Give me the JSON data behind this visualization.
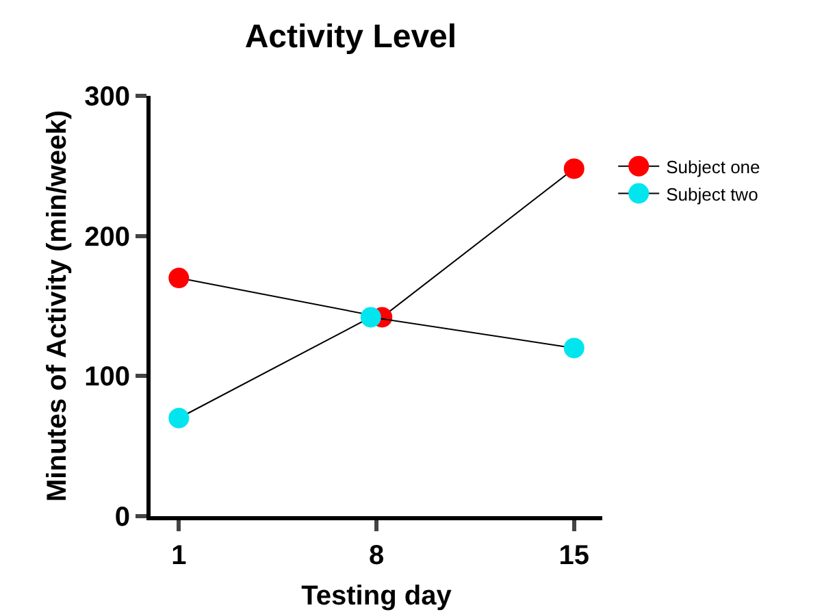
{
  "chart_data": {
    "type": "line",
    "title": "Activity Level",
    "xlabel": "Testing day",
    "ylabel": "Minutes of Activity (min/week)",
    "series": [
      {
        "name": "Subject one",
        "color": "#ff0000",
        "x": [
          1,
          8.2,
          15
        ],
        "values": [
          170,
          142,
          248
        ]
      },
      {
        "name": "Subject two",
        "color": "#00e5ee",
        "x": [
          1,
          7.8,
          15
        ],
        "values": [
          70,
          142,
          120
        ]
      }
    ],
    "xlim": [
      0,
      16
    ],
    "xticks": [
      1,
      8,
      15
    ],
    "ylim": [
      0,
      300
    ],
    "yticks": [
      0,
      100,
      200,
      300
    ],
    "grid": false,
    "legend": "right",
    "marker": "circle",
    "line_style": "solid"
  }
}
